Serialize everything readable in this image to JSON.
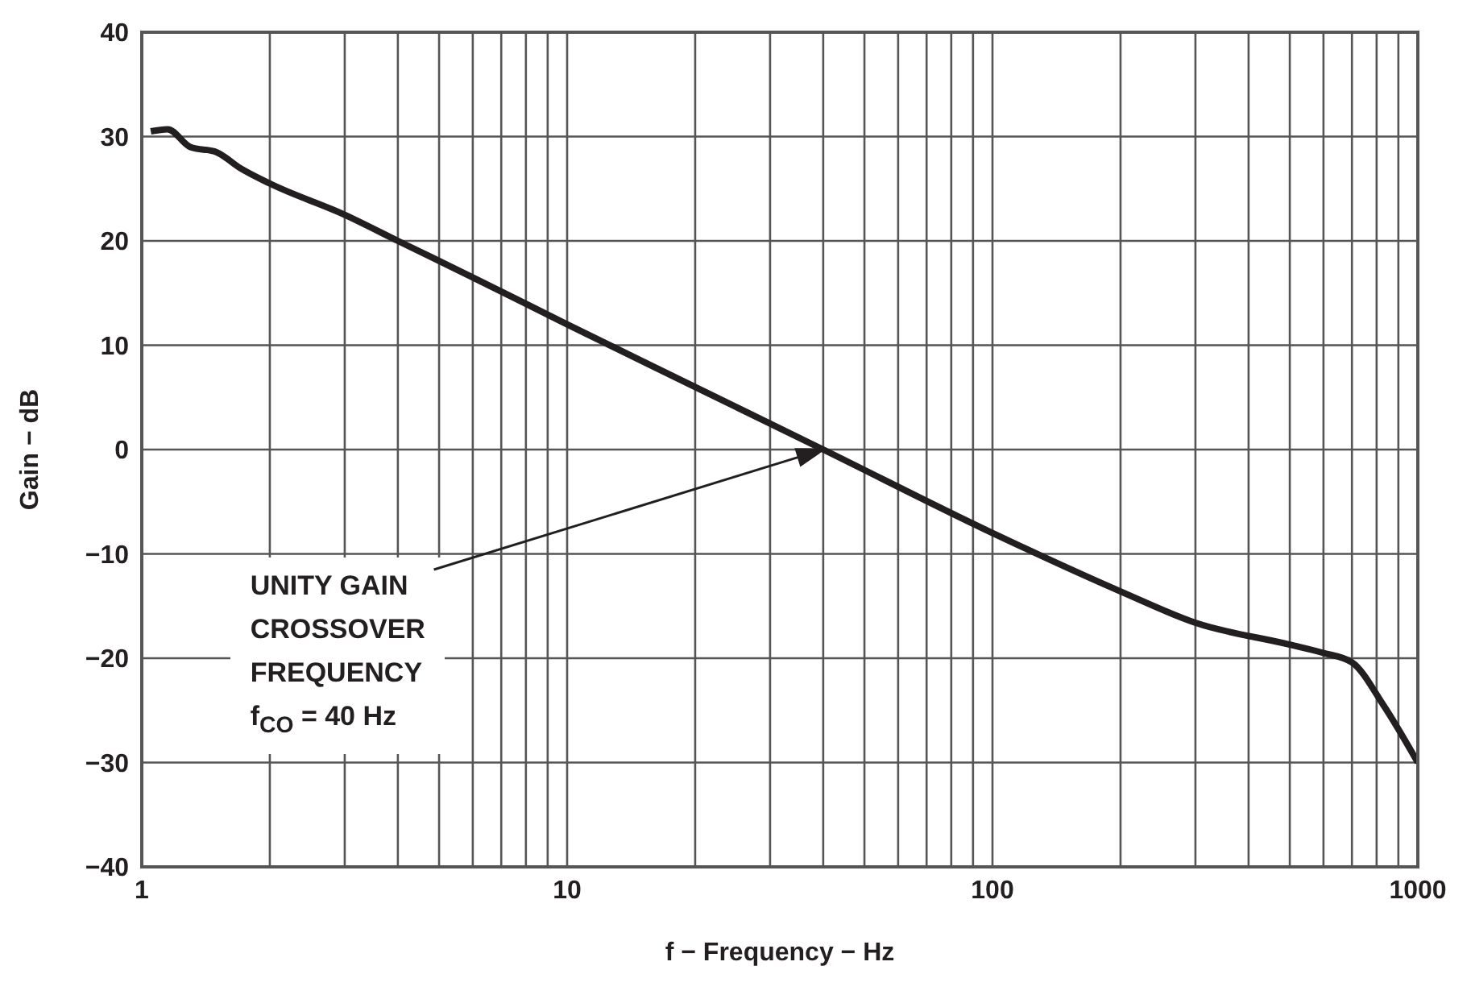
{
  "chart_data": {
    "type": "line",
    "xlabel": "f − Frequency − Hz",
    "ylabel": "Gain − dB",
    "log": "x",
    "grid": true,
    "line_style": "solid",
    "marker": "none",
    "xlim": [
      1,
      1000
    ],
    "ylim": [
      -40,
      40
    ],
    "xticks": [
      1,
      {
        "value": 2,
        "label": null
      },
      {
        "value": 3,
        "label": null
      },
      {
        "value": 4,
        "label": null
      },
      {
        "value": 5,
        "label": null
      },
      {
        "value": 6,
        "label": null
      },
      {
        "value": 7,
        "label": null
      },
      {
        "value": 8,
        "label": null
      },
      {
        "value": 9,
        "label": null
      },
      10,
      {
        "value": 20,
        "label": null
      },
      {
        "value": 30,
        "label": null
      },
      {
        "value": 40,
        "label": null
      },
      {
        "value": 50,
        "label": null
      },
      {
        "value": 60,
        "label": null
      },
      {
        "value": 70,
        "label": null
      },
      {
        "value": 80,
        "label": null
      },
      {
        "value": 90,
        "label": null
      },
      100,
      {
        "value": 200,
        "label": null
      },
      {
        "value": 300,
        "label": null
      },
      {
        "value": 400,
        "label": null
      },
      {
        "value": 500,
        "label": null
      },
      {
        "value": 600,
        "label": null
      },
      {
        "value": 700,
        "label": null
      },
      {
        "value": 800,
        "label": null
      },
      {
        "value": 900,
        "label": null
      },
      1000
    ],
    "yticks": [
      -40,
      -30,
      -20,
      -10,
      0,
      10,
      20,
      30,
      40
    ],
    "x": [
      1.05,
      1.15,
      1.3,
      1.5,
      1.7,
      2,
      3,
      4,
      6,
      10,
      20,
      40,
      100,
      200,
      300,
      500,
      600,
      700,
      830,
      1000
    ],
    "series": [
      {
        "color": "#231f20",
        "values": [
          30.5,
          30.7,
          29,
          28.5,
          27,
          25.5,
          22.5,
          20,
          16.5,
          12,
          6,
          0,
          -8,
          -13.6,
          -16.6,
          -18.7,
          -19.5,
          -20.4,
          -24.5,
          -30
        ]
      }
    ],
    "annotations": [
      "UNITY GAIN\nCROSSOVER\nFREQUENCY\nf$_{CO}$ = 40 Hz"
    ]
  }
}
